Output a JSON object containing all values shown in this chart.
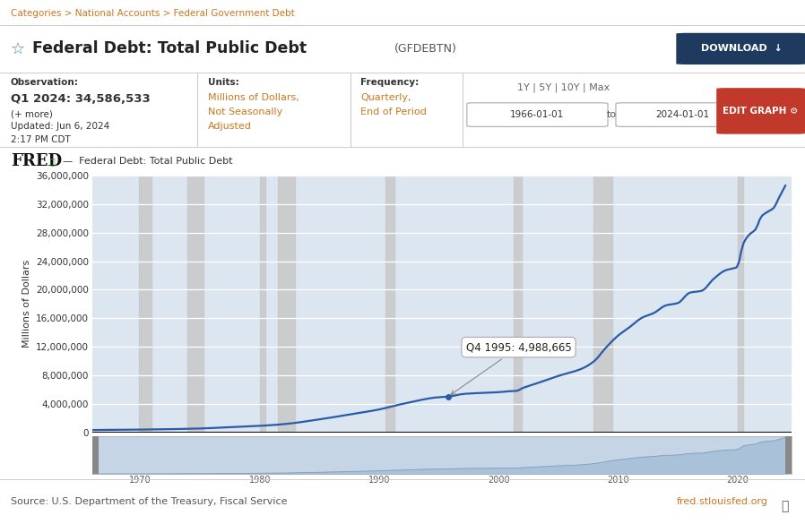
{
  "title": "Federal Debt: Total Public Debt",
  "ylabel": "Millions of Dollars",
  "series_label": "Federal Debt: Total Public Debt",
  "line_color": "#2a5ba8",
  "background_color": "#cdd8e3",
  "plot_bg_color": "#dce6f0",
  "chart_outer_bg": "#cdd8e3",
  "grid_color": "#ffffff",
  "ylim": [
    0,
    36000000
  ],
  "yticks": [
    0,
    4000000,
    8000000,
    12000000,
    16000000,
    20000000,
    24000000,
    28000000,
    32000000,
    36000000
  ],
  "ytick_labels": [
    "0",
    "4,000,000",
    "8,000,000",
    "12,000,000",
    "16,000,000",
    "20,000,000",
    "24,000,000",
    "28,000,000",
    "32,000,000",
    "36,000,000"
  ],
  "xlim_start": 1966,
  "xlim_end": 2024.5,
  "xticks": [
    1970,
    1975,
    1980,
    1985,
    1990,
    1995,
    2000,
    2005,
    2010,
    2015,
    2020
  ],
  "recession_bands": [
    [
      1969.917,
      1970.917
    ],
    [
      1973.917,
      1975.25
    ],
    [
      1980.0,
      1980.5
    ],
    [
      1981.5,
      1982.917
    ],
    [
      1990.5,
      1991.25
    ],
    [
      2001.25,
      2001.917
    ],
    [
      2007.917,
      2009.5
    ],
    [
      2020.0,
      2020.5
    ]
  ],
  "tooltip_x": 1995.75,
  "tooltip_y": 4988665,
  "tooltip_text": "Q4 1995: 4,988,665",
  "source_text": "Source: U.S. Department of the Treasury, Fiscal Service",
  "website_text": "fred.stlouisfed.org",
  "header_bg": "#f0ead8",
  "nav_text": "Categories > National Accounts > Federal Government Debt",
  "nav_color": "#cc7722",
  "header_title_bold": "Federal Debt: Total Public Debt",
  "header_subtitle": "(GFDEBTN)",
  "obs_label": "Observation:",
  "obs_value": "Q1 2024: 34,586,533",
  "obs_more": "(+ more)",
  "obs_updated": "Updated: Jun 6, 2024",
  "obs_time": "2:17 PM CDT",
  "units_label": "Units:",
  "units_line1": "Millions of Dollars,",
  "units_line2": "Not Seasonally",
  "units_line3": "Adjusted",
  "freq_label": "Frequency:",
  "freq_line1": "Quarterly,",
  "freq_line2": "End of Period",
  "range_links": "1Y | 5Y | 10Y | Max",
  "date_from": "1966-01-01",
  "date_to": "2024-01-01",
  "mini_xticks": [
    1970,
    1980,
    1990,
    2000,
    2010,
    2020
  ],
  "mini_xlim_start": 1966,
  "mini_xlim_end": 2024.5
}
